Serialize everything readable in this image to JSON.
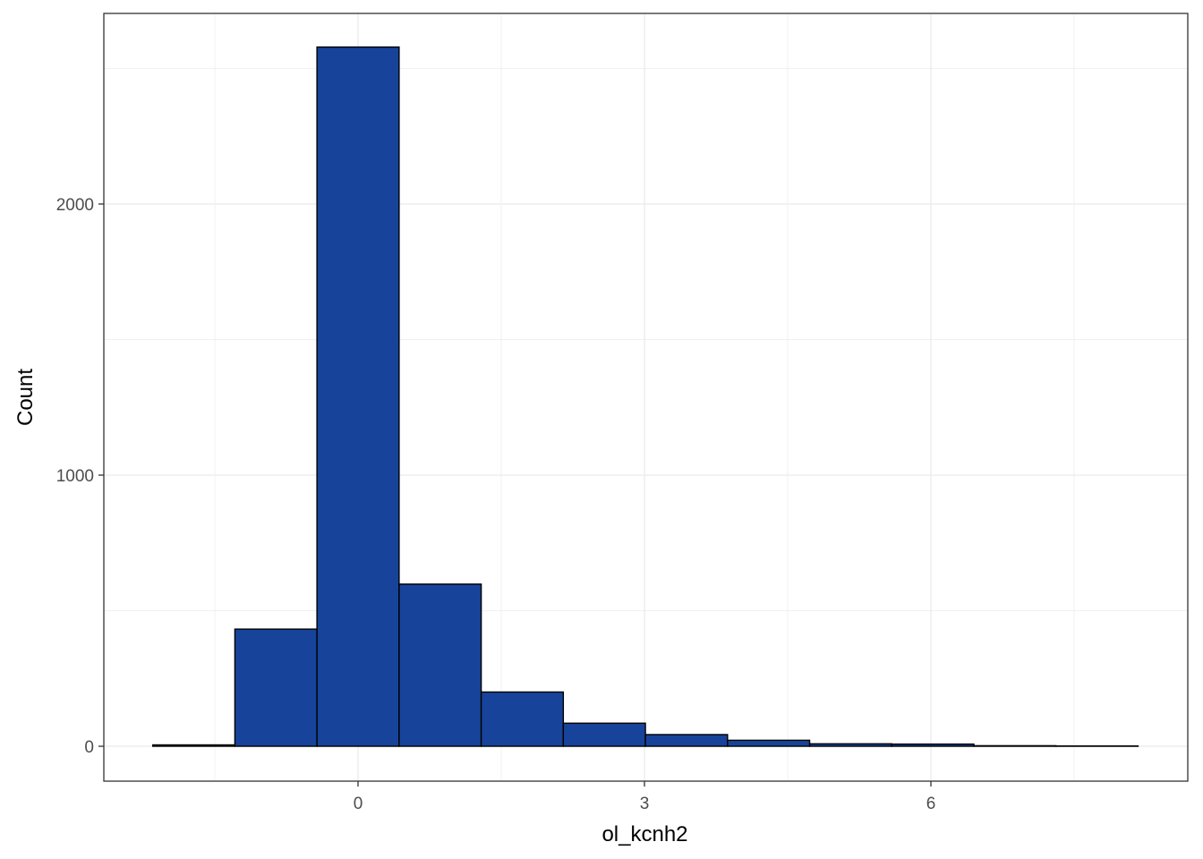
{
  "chart_data": {
    "type": "bar",
    "subtype": "histogram",
    "xlabel": "ol_kcnh2",
    "ylabel": "Count",
    "xlim": [
      -1.8,
      8.4
    ],
    "ylim": [
      -130,
      2720
    ],
    "x_ticks": [
      0,
      3,
      6
    ],
    "x_tick_labels": [
      "0",
      "3",
      "6"
    ],
    "y_ticks": [
      0,
      1000,
      2000
    ],
    "y_tick_labels": [
      "0",
      "1000",
      "2000"
    ],
    "x_minor_ticks": [
      -1.5,
      1.5,
      4.5,
      7.5
    ],
    "y_minor_ticks": [
      500,
      1500,
      2500
    ],
    "grid": true,
    "bins": [
      {
        "x0": -2.15,
        "x1": -1.29,
        "count": 5
      },
      {
        "x0": -1.29,
        "x1": -0.43,
        "count": 432
      },
      {
        "x0": -0.43,
        "x1": 0.43,
        "count": 2579
      },
      {
        "x0": 0.43,
        "x1": 1.29,
        "count": 598
      },
      {
        "x0": 1.29,
        "x1": 2.15,
        "count": 200
      },
      {
        "x0": 2.15,
        "x1": 3.01,
        "count": 85
      },
      {
        "x0": 3.01,
        "x1": 3.87,
        "count": 43
      },
      {
        "x0": 3.87,
        "x1": 4.73,
        "count": 22
      },
      {
        "x0": 4.73,
        "x1": 5.59,
        "count": 9
      },
      {
        "x0": 5.59,
        "x1": 6.45,
        "count": 8
      },
      {
        "x0": 6.45,
        "x1": 7.31,
        "count": 2
      },
      {
        "x0": 7.31,
        "x1": 8.17,
        "count": 1
      }
    ],
    "colors": {
      "bar_fill": "#17449a",
      "bar_stroke": "#000000",
      "grid": "#ebebeb",
      "panel_border": "#333333",
      "tick_text": "#4d4d4d"
    }
  }
}
